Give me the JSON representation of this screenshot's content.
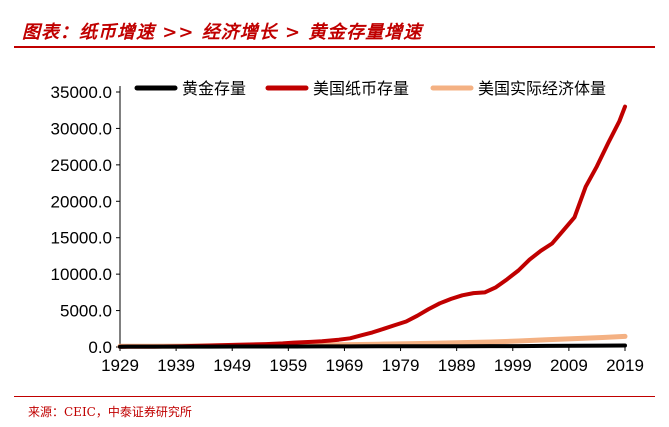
{
  "header": {
    "title": "图表：纸币增速  >>  经济增长  >  黄金存量增速"
  },
  "source": "来源：CEIC，中泰证券研究所",
  "colors": {
    "accent": "#c00000",
    "series_gold": "#000000",
    "series_currency": "#c00000",
    "series_gdp": "#f4b183"
  },
  "chart_data": {
    "type": "line",
    "title": "",
    "xlabel": "",
    "ylabel": "",
    "xlim": [
      1929,
      2019
    ],
    "ylim": [
      0,
      35000
    ],
    "yticks": [
      "0.0",
      "5000.0",
      "10000.0",
      "15000.0",
      "20000.0",
      "25000.0",
      "30000.0",
      "35000.0"
    ],
    "xticks": [
      "1929",
      "1939",
      "1949",
      "1959",
      "1969",
      "1979",
      "1989",
      "1999",
      "2009",
      "2019"
    ],
    "grid": false,
    "legend_position": "top",
    "series": [
      {
        "name": "黄金存量",
        "color": "#000000",
        "x": [
          1929,
          1935,
          1940,
          1945,
          1950,
          1955,
          1960,
          1965,
          1970,
          1975,
          1980,
          1985,
          1990,
          1995,
          2000,
          2005,
          2010,
          2015,
          2019
        ],
        "y": [
          40,
          50,
          55,
          60,
          65,
          70,
          75,
          80,
          85,
          90,
          95,
          100,
          110,
          120,
          130,
          150,
          170,
          190,
          200
        ]
      },
      {
        "name": "美国纸币存量",
        "color": "#c00000",
        "x": [
          1929,
          1935,
          1940,
          1945,
          1950,
          1955,
          1958,
          1960,
          1963,
          1965,
          1968,
          1970,
          1972,
          1974,
          1976,
          1978,
          1980,
          1982,
          1984,
          1986,
          1987,
          1988,
          1990,
          1992,
          1994,
          1996,
          1998,
          2000,
          2002,
          2004,
          2006,
          2008,
          2010,
          2012,
          2014,
          2016,
          2018,
          2019
        ],
        "y": [
          40,
          60,
          100,
          200,
          300,
          400,
          500,
          600,
          700,
          800,
          1000,
          1200,
          1600,
          2000,
          2500,
          3000,
          3500,
          4300,
          5200,
          6000,
          6300,
          6600,
          7100,
          7400,
          7500,
          8200,
          9300,
          10500,
          12000,
          13200,
          14200,
          16000,
          17800,
          22000,
          24800,
          28000,
          31000,
          33000
        ]
      },
      {
        "name": "美国实际经济体量",
        "color": "#f4b183",
        "x": [
          1929,
          1935,
          1940,
          1945,
          1950,
          1955,
          1960,
          1965,
          1970,
          1975,
          1980,
          1985,
          1990,
          1995,
          2000,
          2005,
          2010,
          2015,
          2019
        ],
        "y": [
          90,
          100,
          120,
          150,
          180,
          200,
          240,
          290,
          330,
          380,
          450,
          520,
          600,
          680,
          830,
          1000,
          1150,
          1300,
          1450
        ]
      }
    ]
  }
}
